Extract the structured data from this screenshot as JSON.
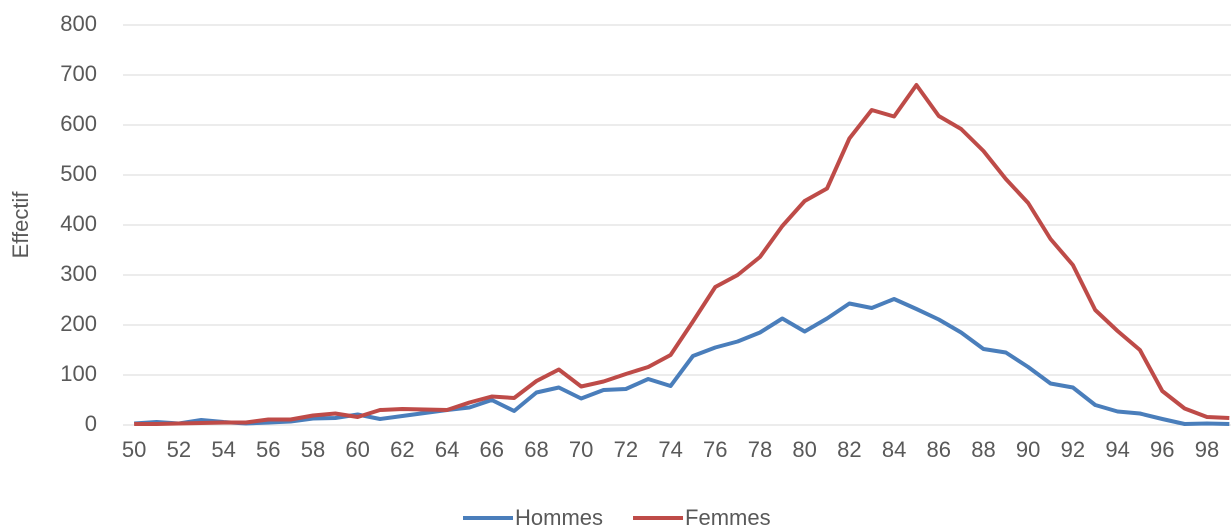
{
  "chart_data": {
    "type": "line",
    "y_label": "Effectif",
    "categories": [
      "50",
      null,
      "52",
      null,
      "54",
      null,
      "56",
      null,
      "58",
      null,
      "60",
      null,
      "62",
      null,
      "64",
      null,
      "66",
      null,
      "68",
      null,
      "70",
      null,
      "72",
      null,
      "74",
      null,
      "76",
      null,
      "78",
      null,
      "80",
      null,
      "82",
      null,
      "84",
      null,
      "86",
      null,
      "88",
      null,
      "90",
      null,
      "92",
      null,
      "94",
      null,
      "96",
      null,
      "98",
      null
    ],
    "series": [
      {
        "name": "Hommes",
        "color": "#4a7ebb",
        "values": [
          3,
          6,
          3,
          10,
          6,
          3,
          5,
          7,
          13,
          14,
          21,
          12,
          18,
          24,
          30,
          35,
          50,
          28,
          65,
          75,
          53,
          70,
          72,
          92,
          78,
          138,
          155,
          167,
          185,
          213,
          187,
          213,
          243,
          234,
          252,
          232,
          211,
          185,
          152,
          145,
          116,
          83,
          75,
          40,
          27,
          23,
          12,
          2,
          3,
          2
        ]
      },
      {
        "name": "Femmes",
        "color": "#be4b48",
        "values": [
          2,
          2,
          3,
          4,
          5,
          5,
          11,
          11,
          19,
          23,
          16,
          30,
          32,
          31,
          30,
          45,
          57,
          54,
          88,
          111,
          77,
          87,
          102,
          116,
          140,
          207,
          276,
          300,
          336,
          398,
          448,
          473,
          573,
          630,
          617,
          680,
          618,
          592,
          548,
          492,
          444,
          372,
          320,
          230,
          188,
          150,
          68,
          33,
          16,
          14
        ]
      }
    ],
    "ylim": [
      0,
      800
    ],
    "yticks": [
      0,
      100,
      200,
      300,
      400,
      500,
      600,
      700,
      800
    ],
    "grid": true
  }
}
